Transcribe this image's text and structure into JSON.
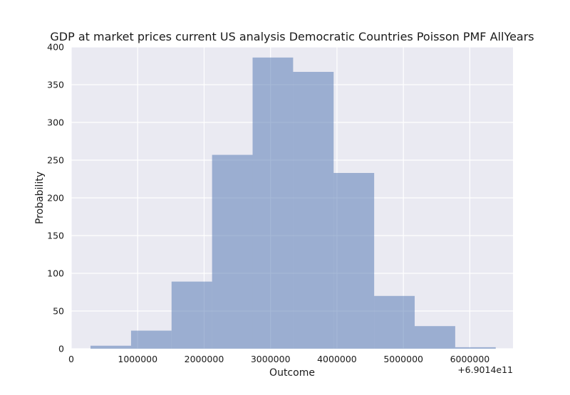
{
  "chart_data": {
    "type": "bar",
    "title": "GDP at market prices current US analysis Democratic Countries Poisson PMF AllYears",
    "xlabel": "Outcome",
    "ylabel": "Probability",
    "x_offset_label": "+6.9014e11",
    "xlim": [
      0,
      6650000
    ],
    "ylim": [
      0,
      400
    ],
    "x_ticks": [
      0,
      1000000,
      2000000,
      3000000,
      4000000,
      5000000,
      6000000
    ],
    "x_tick_labels": [
      "0",
      "1000000",
      "2000000",
      "3000000",
      "4000000",
      "5000000",
      "6000000"
    ],
    "y_ticks": [
      0,
      50,
      100,
      150,
      200,
      250,
      300,
      350,
      400
    ],
    "y_tick_labels": [
      "0",
      "50",
      "100",
      "150",
      "200",
      "250",
      "300",
      "350",
      "400"
    ],
    "bins": [
      {
        "x0": 290000,
        "x1": 900000,
        "value": 4
      },
      {
        "x0": 900000,
        "x1": 1510000,
        "value": 24
      },
      {
        "x0": 1510000,
        "x1": 2120000,
        "value": 89
      },
      {
        "x0": 2120000,
        "x1": 2730000,
        "value": 257
      },
      {
        "x0": 2730000,
        "x1": 3340000,
        "value": 386
      },
      {
        "x0": 3340000,
        "x1": 3950000,
        "value": 367
      },
      {
        "x0": 3950000,
        "x1": 4560000,
        "value": 233
      },
      {
        "x0": 4560000,
        "x1": 5170000,
        "value": 70
      },
      {
        "x0": 5170000,
        "x1": 5780000,
        "value": 30
      },
      {
        "x0": 5780000,
        "x1": 6390000,
        "value": 2
      }
    ],
    "grid": true,
    "bar_color": "#4c72b0",
    "bar_opacity": 0.5,
    "plot_background": "#eaeaf2",
    "grid_color": "#ffffff"
  }
}
